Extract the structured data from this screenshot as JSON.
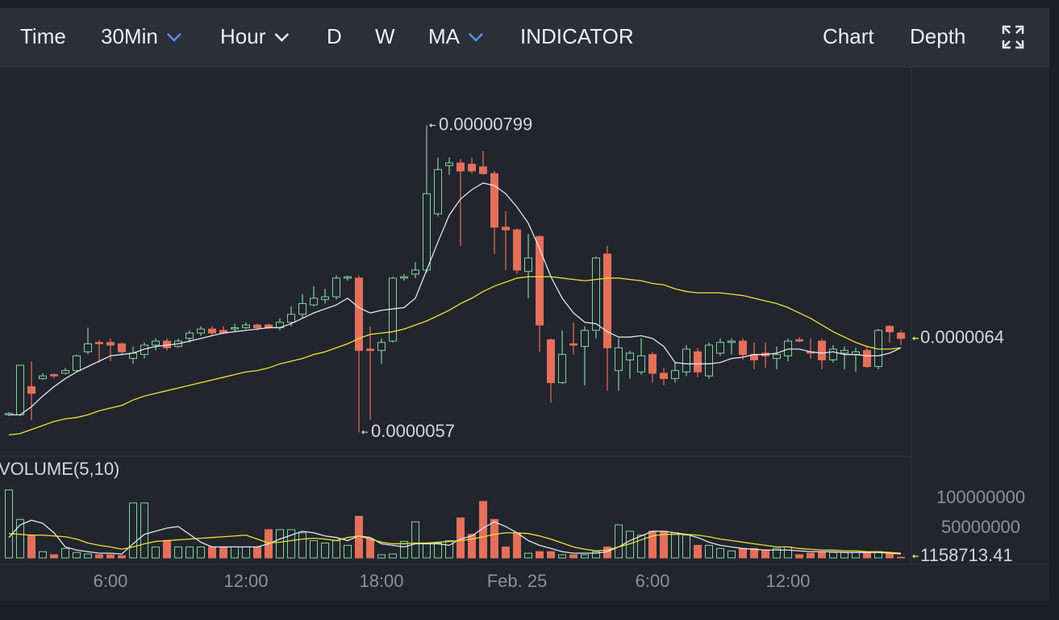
{
  "toolbar": {
    "items": [
      {
        "label": "Time"
      },
      {
        "label": "30Min",
        "active": true,
        "dropdown": true
      },
      {
        "label": "Hour",
        "dropdown": true
      },
      {
        "label": "D"
      },
      {
        "label": "W"
      },
      {
        "label": "MA",
        "active": true,
        "dropdown": true
      },
      {
        "label": "INDICATOR"
      },
      {
        "label": "Chart",
        "active": true
      },
      {
        "label": "Depth"
      }
    ]
  },
  "chart_data": [
    {
      "type": "candlestick",
      "up_color": "#7fd49a",
      "down_color": "#e4705b",
      "label_color": "#f3e93e",
      "categories": [
        null,
        null,
        null,
        null,
        null,
        null,
        null,
        null,
        null,
        "6:00",
        null,
        null,
        null,
        null,
        null,
        null,
        null,
        null,
        null,
        null,
        null,
        "12:00",
        null,
        null,
        null,
        null,
        null,
        null,
        null,
        null,
        null,
        null,
        null,
        "18:00",
        null,
        null,
        null,
        null,
        null,
        null,
        null,
        null,
        null,
        null,
        null,
        "Feb. 25",
        null,
        null,
        null,
        null,
        null,
        null,
        null,
        null,
        null,
        null,
        null,
        "6:00",
        null,
        null,
        null,
        null,
        null,
        null,
        null,
        null,
        null,
        null,
        null,
        "12:00",
        null,
        null,
        null,
        null,
        null,
        null,
        null,
        null,
        null,
        null
      ],
      "open": [
        5.83e-06,
        5.83e-06,
        6.04e-06,
        6.1e-06,
        6.13e-06,
        6.14e-06,
        6.16e-06,
        6.3e-06,
        6.37e-06,
        6.37e-06,
        6.36e-06,
        6.25e-06,
        6.28e-06,
        6.35e-06,
        6.38e-06,
        6.34e-06,
        6.4e-06,
        6.44e-06,
        6.47e-06,
        6.46e-06,
        6.47e-06,
        6.48e-06,
        6.5e-06,
        6.5e-06,
        6.48e-06,
        6.52e-06,
        6.58e-06,
        6.65e-06,
        6.69e-06,
        6.71e-06,
        6.85e-06,
        6.85e-06,
        6.32e-06,
        6.31e-06,
        6.38e-06,
        6.85e-06,
        6.88e-06,
        6.91e-06,
        7.33e-06,
        7.69e-06,
        7.71e-06,
        7.7e-06,
        7.68e-06,
        7.63e-06,
        7.23e-06,
        7.21e-06,
        6.9e-06,
        7.16e-06,
        6.39e-06,
        6.07e-06,
        6.36e-06,
        6.34e-06,
        6.46e-06,
        7.03e-06,
        6.16e-06,
        6.24e-06,
        6.15e-06,
        6.28e-06,
        6.14e-06,
        6.1e-06,
        6.15e-06,
        6.3e-06,
        6.12e-06,
        6.29e-06,
        6.37e-06,
        6.38e-06,
        6.28e-06,
        6.29e-06,
        6.25e-06,
        6.27e-06,
        6.39e-06,
        6.3e-06,
        6.38e-06,
        6.24e-06,
        6.29e-06,
        6.28e-06,
        6.31e-06,
        6.19e-06,
        6.49e-06,
        6.44e-06
      ],
      "high": [
        5.85e-06,
        6.2e-06,
        6.23e-06,
        6.14e-06,
        6.14e-06,
        6.18e-06,
        6.28e-06,
        6.48e-06,
        6.39e-06,
        6.4e-06,
        6.37e-06,
        6.34e-06,
        6.37e-06,
        6.4e-06,
        6.4e-06,
        6.4e-06,
        6.46e-06,
        6.49e-06,
        6.49e-06,
        6.49e-06,
        6.51e-06,
        6.52e-06,
        6.51e-06,
        6.51e-06,
        6.55e-06,
        6.64e-06,
        6.73e-06,
        6.79e-06,
        6.77e-06,
        6.87e-06,
        6.87e-06,
        6.87e-06,
        6.49e-06,
        6.4e-06,
        6.86e-06,
        6.88e-06,
        6.97e-06,
        7.99e-06,
        7.75e-06,
        7.75e-06,
        7.74e-06,
        7.75e-06,
        7.8e-06,
        7.65e-06,
        7.35e-06,
        7.22e-06,
        7.18e-06,
        7.17e-06,
        6.4e-06,
        6.46e-06,
        6.52e-06,
        6.49e-06,
        7.01e-06,
        7.09e-06,
        6.4e-06,
        6.31e-06,
        6.4e-06,
        6.3e-06,
        6.18e-06,
        6.22e-06,
        6.35e-06,
        6.33e-06,
        6.37e-06,
        6.4e-06,
        6.4e-06,
        6.4e-06,
        6.37e-06,
        6.37e-06,
        6.34e-06,
        6.4e-06,
        6.41e-06,
        6.4e-06,
        6.4e-06,
        6.35e-06,
        6.34e-06,
        6.33e-06,
        6.34e-06,
        6.47e-06,
        6.5e-06,
        6.46e-06
      ],
      "low": [
        5.82e-06,
        5.82e-06,
        5.79e-06,
        6.09e-06,
        6.1e-06,
        6.13e-06,
        6.15e-06,
        6.28e-06,
        6.22e-06,
        6.23e-06,
        6.28e-06,
        6.21e-06,
        6.25e-06,
        6.31e-06,
        6.31e-06,
        6.33e-06,
        6.37e-06,
        6.42e-06,
        6.42e-06,
        6.43e-06,
        6.45e-06,
        6.47e-06,
        6.46e-06,
        6.47e-06,
        6.46e-06,
        6.49e-06,
        6.55e-06,
        6.64e-06,
        6.66e-06,
        6.69e-06,
        6.83e-06,
        5.7e-06,
        5.79e-06,
        6.21e-06,
        6.37e-06,
        6.83e-06,
        6.85e-06,
        6.89e-06,
        7.31e-06,
        7.62e-06,
        7.09e-06,
        7.63e-06,
        7.62e-06,
        7.03e-06,
        6.91e-06,
        6.88e-06,
        6.7e-06,
        6.3e-06,
        5.92e-06,
        6.06e-06,
        6.28e-06,
        6.05e-06,
        6.4e-06,
        6.01e-06,
        6.01e-06,
        6.1e-06,
        6.13e-06,
        6.07e-06,
        6.05e-06,
        6.07e-06,
        6.12e-06,
        6.11e-06,
        6.1e-06,
        6.27e-06,
        6.28e-06,
        6.24e-06,
        6.17e-06,
        6.18e-06,
        6.17e-06,
        6.23e-06,
        6.37e-06,
        6.25e-06,
        6.17e-06,
        6.22e-06,
        6.17e-06,
        6.15e-06,
        6.18e-06,
        6.17e-06,
        6.37e-06,
        6.35e-06
      ],
      "close": [
        5.84e-06,
        6.2e-06,
        5.99e-06,
        6.12e-06,
        6.12e-06,
        6.16e-06,
        6.27e-06,
        6.36e-06,
        6.36e-06,
        6.35e-06,
        6.3e-06,
        6.29e-06,
        6.35e-06,
        6.38e-06,
        6.33e-06,
        6.38e-06,
        6.44e-06,
        6.47e-06,
        6.44e-06,
        6.44e-06,
        6.48e-06,
        6.5e-06,
        6.48e-06,
        6.48e-06,
        6.52e-06,
        6.58e-06,
        6.66e-06,
        6.7e-06,
        6.71e-06,
        6.85e-06,
        6.86e-06,
        6.31e-06,
        6.31e-06,
        6.37e-06,
        6.85e-06,
        6.86e-06,
        6.91e-06,
        7.48e-06,
        7.66e-06,
        7.71e-06,
        7.65e-06,
        7.65e-06,
        7.63e-06,
        7.23e-06,
        7.21e-06,
        6.91e-06,
        7e-06,
        6.5e-06,
        6.07e-06,
        6.28e-06,
        6.35e-06,
        6.46e-06,
        7e-06,
        6.33e-06,
        6.33e-06,
        6.29e-06,
        6.27e-06,
        6.14e-06,
        6.1e-06,
        6.16e-06,
        6.32e-06,
        6.15e-06,
        6.35e-06,
        6.37e-06,
        6.38e-06,
        6.28e-06,
        6.24e-06,
        6.27e-06,
        6.28e-06,
        6.38e-06,
        6.38e-06,
        6.29e-06,
        6.24e-06,
        6.32e-06,
        6.31e-06,
        6.3e-06,
        6.19e-06,
        6.46e-06,
        6.45e-06,
        6.4e-06
      ],
      "series": [
        {
          "color": "#e4e4e8",
          "values": [
            5.83e-06,
            5.83e-06,
            5.89e-06,
            5.97e-06,
            6.04e-06,
            6.1e-06,
            6.15e-06,
            6.19e-06,
            6.23e-06,
            6.27e-06,
            6.28e-06,
            6.29e-06,
            6.32e-06,
            6.34e-06,
            6.35e-06,
            6.36e-06,
            6.38e-06,
            6.4e-06,
            6.42e-06,
            6.44e-06,
            6.45e-06,
            6.46e-06,
            6.47e-06,
            6.48e-06,
            6.48e-06,
            6.51e-06,
            6.55e-06,
            6.59e-06,
            6.62e-06,
            6.65e-06,
            6.7e-06,
            6.63e-06,
            6.59e-06,
            6.61e-06,
            6.62e-06,
            6.63e-06,
            6.7e-06,
            6.91e-06,
            7.12e-06,
            7.32e-06,
            7.44e-06,
            7.51e-06,
            7.56e-06,
            7.54e-06,
            7.48e-06,
            7.38e-06,
            7.26e-06,
            7.07e-06,
            6.86e-06,
            6.7e-06,
            6.59e-06,
            6.52e-06,
            6.51e-06,
            6.45e-06,
            6.41e-06,
            6.41e-06,
            6.42e-06,
            6.4e-06,
            6.34e-06,
            6.22e-06,
            6.21e-06,
            6.21e-06,
            6.21e-06,
            6.22e-06,
            6.25e-06,
            6.26e-06,
            6.28e-06,
            6.28e-06,
            6.29e-06,
            6.32e-06,
            6.32e-06,
            6.3e-06,
            6.29e-06,
            6.3e-06,
            6.28e-06,
            6.28e-06,
            6.27e-06,
            6.27e-06,
            6.29e-06,
            6.33e-06
          ]
        },
        {
          "color": "#f0e130",
          "values": [
            5.68e-06,
            5.69e-06,
            5.72e-06,
            5.75e-06,
            5.78e-06,
            5.8e-06,
            5.81e-06,
            5.83e-06,
            5.86e-06,
            5.88e-06,
            5.9e-06,
            5.94e-06,
            5.97e-06,
            5.99e-06,
            6.01e-06,
            6.03e-06,
            6.05e-06,
            6.07e-06,
            6.09e-06,
            6.11e-06,
            6.13e-06,
            6.15e-06,
            6.16e-06,
            6.18e-06,
            6.21e-06,
            6.23e-06,
            6.25e-06,
            6.28e-06,
            6.3e-06,
            6.33e-06,
            6.36e-06,
            6.4e-06,
            6.43e-06,
            6.44e-06,
            6.45e-06,
            6.47e-06,
            6.5e-06,
            6.53e-06,
            6.57e-06,
            6.61e-06,
            6.66e-06,
            6.7e-06,
            6.75e-06,
            6.79e-06,
            6.82e-06,
            6.85e-06,
            6.86e-06,
            6.86e-06,
            6.86e-06,
            6.85e-06,
            6.84e-06,
            6.83e-06,
            6.84e-06,
            6.85e-06,
            6.85e-06,
            6.84e-06,
            6.83e-06,
            6.81e-06,
            6.8e-06,
            6.77e-06,
            6.75e-06,
            6.74e-06,
            6.74e-06,
            6.74e-06,
            6.73e-06,
            6.72e-06,
            6.7e-06,
            6.68e-06,
            6.66e-06,
            6.63e-06,
            6.59e-06,
            6.55e-06,
            6.5e-06,
            6.45e-06,
            6.41e-06,
            6.37e-06,
            6.34e-06,
            6.32e-06,
            6.32e-06,
            6.33e-06
          ]
        }
      ],
      "ylim": [
        5.52e-06,
        8.42e-06
      ]
    },
    {
      "type": "bar",
      "title": "VOLUME(5,10)",
      "values": [
        114000000.0,
        64500000.0,
        38200000.0,
        10500000.0,
        5300000.0,
        15800000.0,
        9200000.0,
        6600000.0,
        5300000.0,
        5300000.0,
        3900000.0,
        92100000.0,
        92100000.0,
        18400000.0,
        28900000.0,
        18400000.0,
        18400000.0,
        18400000.0,
        18400000.0,
        18400000.0,
        18400000.0,
        18400000.0,
        18400000.0,
        47400000.0,
        47400000.0,
        47400000.0,
        42100000.0,
        28900000.0,
        25000000.0,
        28900000.0,
        21100000.0,
        69700000.0,
        31600000.0,
        5300000.0,
        6600000.0,
        27600000.0,
        60500000.0,
        25000000.0,
        25000000.0,
        28900000.0,
        67100000.0,
        39500000.0,
        94700000.0,
        64500000.0,
        18400000.0,
        40800000.0,
        7900000.0,
        10500000.0,
        10500000.0,
        5300000.0,
        5300000.0,
        5300000.0,
        10500000.0,
        18400000.0,
        55300000.0,
        44700000.0,
        38200000.0,
        44700000.0,
        44700000.0,
        42100000.0,
        38200000.0,
        21100000.0,
        21100000.0,
        15800000.0,
        11800000.0,
        15800000.0,
        15800000.0,
        13200000.0,
        15800000.0,
        18400000.0,
        5300000.0,
        7900000.0,
        10500000.0,
        9200000.0,
        9200000.0,
        9200000.0,
        9200000.0,
        10500000.0,
        7900000.0,
        1158713.41
      ],
      "series": [
        {
          "color": "#e4e4e8",
          "values": [
            34200000.0,
            55300000.0,
            63200000.0,
            57900000.0,
            42100000.0,
            18400000.0,
            13200000.0,
            10500000.0,
            7900000.0,
            7900000.0,
            6600000.0,
            23700000.0,
            39500000.0,
            44700000.0,
            50000000.0,
            52600000.0,
            39500000.0,
            26300000.0,
            18400000.0,
            18400000.0,
            18400000.0,
            18400000.0,
            18400000.0,
            23700000.0,
            31600000.0,
            38200000.0,
            44700000.0,
            42100000.0,
            36800000.0,
            34200000.0,
            29000000.0,
            36800000.0,
            34200000.0,
            23700000.0,
            21100000.0,
            18400000.0,
            23700000.0,
            23700000.0,
            23700000.0,
            21100000.0,
            31600000.0,
            36800000.0,
            50000000.0,
            60500000.0,
            52600000.0,
            42100000.0,
            29000000.0,
            21100000.0,
            15800000.0,
            10500000.0,
            7900000.0,
            7900000.0,
            7900000.0,
            10500000.0,
            18400000.0,
            29000000.0,
            36800000.0,
            44700000.0,
            44700000.0,
            42100000.0,
            39500000.0,
            34200000.0,
            26300000.0,
            21100000.0,
            18400000.0,
            15800000.0,
            14500000.0,
            13200000.0,
            13200000.0,
            13200000.0,
            11800000.0,
            10500000.0,
            10500000.0,
            10500000.0,
            9200000.0,
            9200000.0,
            9200000.0,
            9200000.0,
            7900000.0,
            6600000.0
          ]
        },
        {
          "color": "#f0e130",
          "values": [
            40800000.0,
            39500000.0,
            38200000.0,
            38200000.0,
            36800000.0,
            35500000.0,
            31600000.0,
            25000000.0,
            21100000.0,
            18400000.0,
            14500000.0,
            18400000.0,
            23700000.0,
            27600000.0,
            29000000.0,
            30300000.0,
            31600000.0,
            32900000.0,
            34200000.0,
            35500000.0,
            36800000.0,
            38200000.0,
            31600000.0,
            25000000.0,
            26300000.0,
            29000000.0,
            31600000.0,
            32900000.0,
            31600000.0,
            29000000.0,
            34200000.0,
            36800000.0,
            31600000.0,
            26300000.0,
            23700000.0,
            23700000.0,
            25000000.0,
            25000000.0,
            26300000.0,
            27600000.0,
            29000000.0,
            31600000.0,
            35500000.0,
            39500000.0,
            42100000.0,
            42100000.0,
            40800000.0,
            36800000.0,
            31600000.0,
            25000000.0,
            18400000.0,
            14500000.0,
            11800000.0,
            13200000.0,
            18400000.0,
            23700000.0,
            30300000.0,
            36800000.0,
            39500000.0,
            39500000.0,
            39500000.0,
            38200000.0,
            35500000.0,
            31600000.0,
            29000000.0,
            26300000.0,
            23700000.0,
            21100000.0,
            18400000.0,
            18400000.0,
            15800000.0,
            14500000.0,
            13200000.0,
            13200000.0,
            11800000.0,
            11800000.0,
            10500000.0,
            10500000.0,
            9200000.0,
            7900000.0
          ]
        }
      ],
      "ylim": [
        0,
        124300000
      ],
      "yticks": [
        100000000,
        50000000
      ]
    }
  ]
}
